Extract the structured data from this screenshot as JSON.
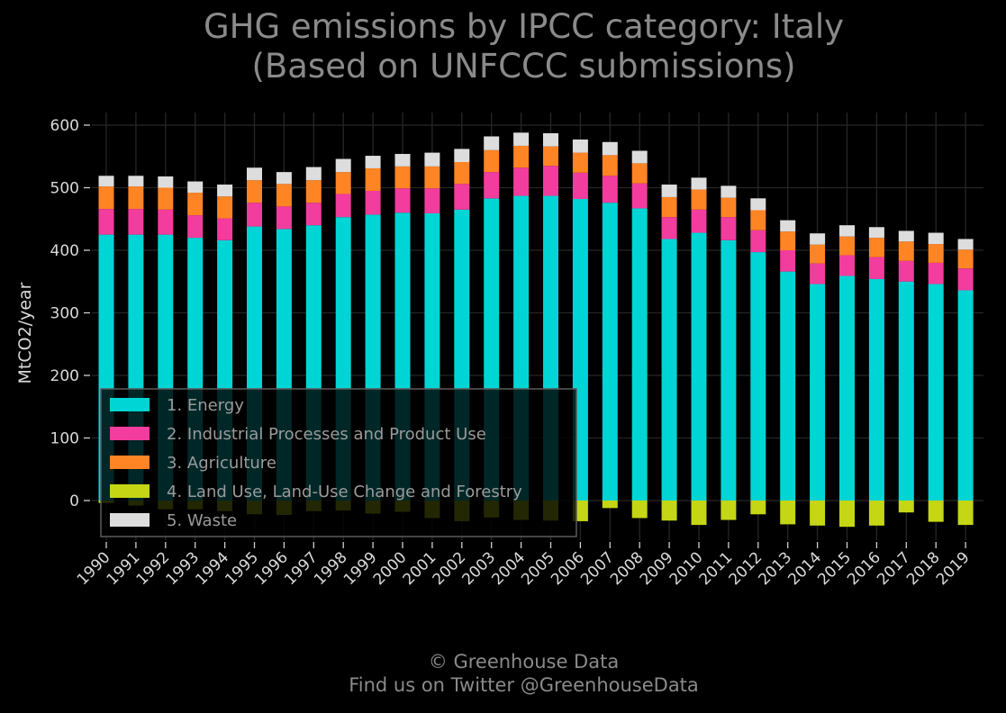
{
  "title_line1": "GHG emissions by IPCC category: Italy",
  "title_line2": "(Based on UNFCCC submissions)",
  "credit_line1": "© Greenhouse Data",
  "credit_line2": "Find us on Twitter @GreenhouseData",
  "chart_data": {
    "type": "bar",
    "stacked": true,
    "ylabel": "MtCO2/year",
    "xlabel": "",
    "ylim": [
      -60,
      620
    ],
    "yticks": [
      0,
      100,
      200,
      300,
      400,
      500,
      600
    ],
    "grid": true,
    "legend_position": "lower-left",
    "categories": [
      "1990",
      "1991",
      "1992",
      "1993",
      "1994",
      "1995",
      "1996",
      "1997",
      "1998",
      "1999",
      "2000",
      "2001",
      "2002",
      "2003",
      "2004",
      "2005",
      "2006",
      "2007",
      "2008",
      "2009",
      "2010",
      "2011",
      "2012",
      "2013",
      "2014",
      "2015",
      "2016",
      "2017",
      "2018",
      "2019"
    ],
    "series": [
      {
        "name": "1. Energy",
        "color": "#00d5d5",
        "values": [
          425,
          425,
          425,
          420,
          416,
          438,
          434,
          440,
          453,
          457,
          460,
          459,
          465,
          483,
          487,
          487,
          482,
          476,
          467,
          418,
          428,
          416,
          397,
          366,
          346,
          359,
          354,
          350,
          346,
          336
        ]
      },
      {
        "name": "2. Industrial Processes and Product Use",
        "color": "#f23c9e",
        "values": [
          41,
          41,
          40,
          36,
          35,
          38,
          36,
          36,
          37,
          38,
          39,
          40,
          41,
          42,
          45,
          48,
          42,
          43,
          40,
          35,
          37,
          37,
          35,
          34,
          33,
          33,
          35,
          33,
          34,
          35
        ]
      },
      {
        "name": "3. Agriculture",
        "color": "#ff8424",
        "values": [
          36,
          36,
          35,
          36,
          35,
          36,
          36,
          36,
          35,
          36,
          35,
          35,
          35,
          35,
          35,
          31,
          32,
          33,
          32,
          32,
          32,
          31,
          32,
          30,
          30,
          30,
          31,
          31,
          30,
          30
        ]
      },
      {
        "name": "4. Land Use, Land-Use Change and Forestry",
        "color": "#c4d614",
        "values": [
          -4,
          -8,
          -14,
          -14,
          -17,
          -22,
          -23,
          -17,
          -16,
          -21,
          -18,
          -28,
          -33,
          -27,
          -31,
          -32,
          -33,
          -12,
          -28,
          -32,
          -39,
          -31,
          -22,
          -38,
          -40,
          -42,
          -40,
          -19,
          -34,
          -39
        ]
      },
      {
        "name": "5. Waste",
        "color": "#dddddd",
        "values": [
          17,
          17,
          18,
          18,
          19,
          20,
          19,
          21,
          21,
          20,
          20,
          22,
          21,
          22,
          21,
          21,
          21,
          21,
          20,
          20,
          19,
          19,
          19,
          18,
          18,
          18,
          17,
          17,
          18,
          17
        ]
      }
    ]
  }
}
